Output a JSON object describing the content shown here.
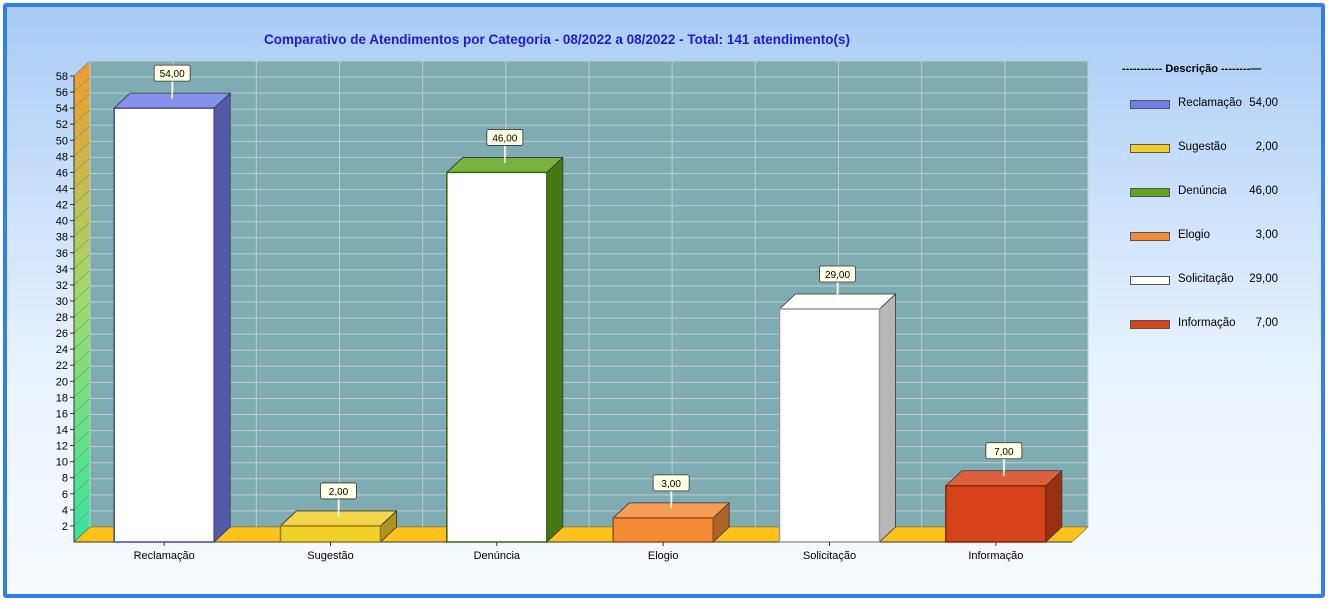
{
  "chart_data": {
    "type": "bar",
    "title": "Comparativo de Atendimentos por Categoria - 08/2022 a 08/2022 - Total: 141 atendimento(s)",
    "categories": [
      "Reclamação",
      "Sugestão",
      "Denúncia",
      "Elogio",
      "Solicitação",
      "Informação"
    ],
    "values": [
      54,
      2,
      46,
      3,
      29,
      7
    ],
    "value_labels": [
      "54,00",
      "2,00",
      "46,00",
      "3,00",
      "29,00",
      "7,00"
    ],
    "colors": [
      "#6f7fe8",
      "#f3cf2a",
      "#5fa61c",
      "#f58a36",
      "#ffffff",
      "#d6431a"
    ],
    "ylim": [
      0,
      58
    ],
    "yticks": [
      2,
      4,
      6,
      8,
      10,
      12,
      14,
      16,
      18,
      20,
      22,
      24,
      26,
      28,
      30,
      32,
      34,
      36,
      38,
      40,
      42,
      44,
      46,
      48,
      50,
      52,
      54,
      56,
      58
    ],
    "xlabel": "",
    "ylabel": "",
    "grid": true,
    "legend_position": "right"
  },
  "legend": {
    "title": "----------- Descrição --------—"
  }
}
